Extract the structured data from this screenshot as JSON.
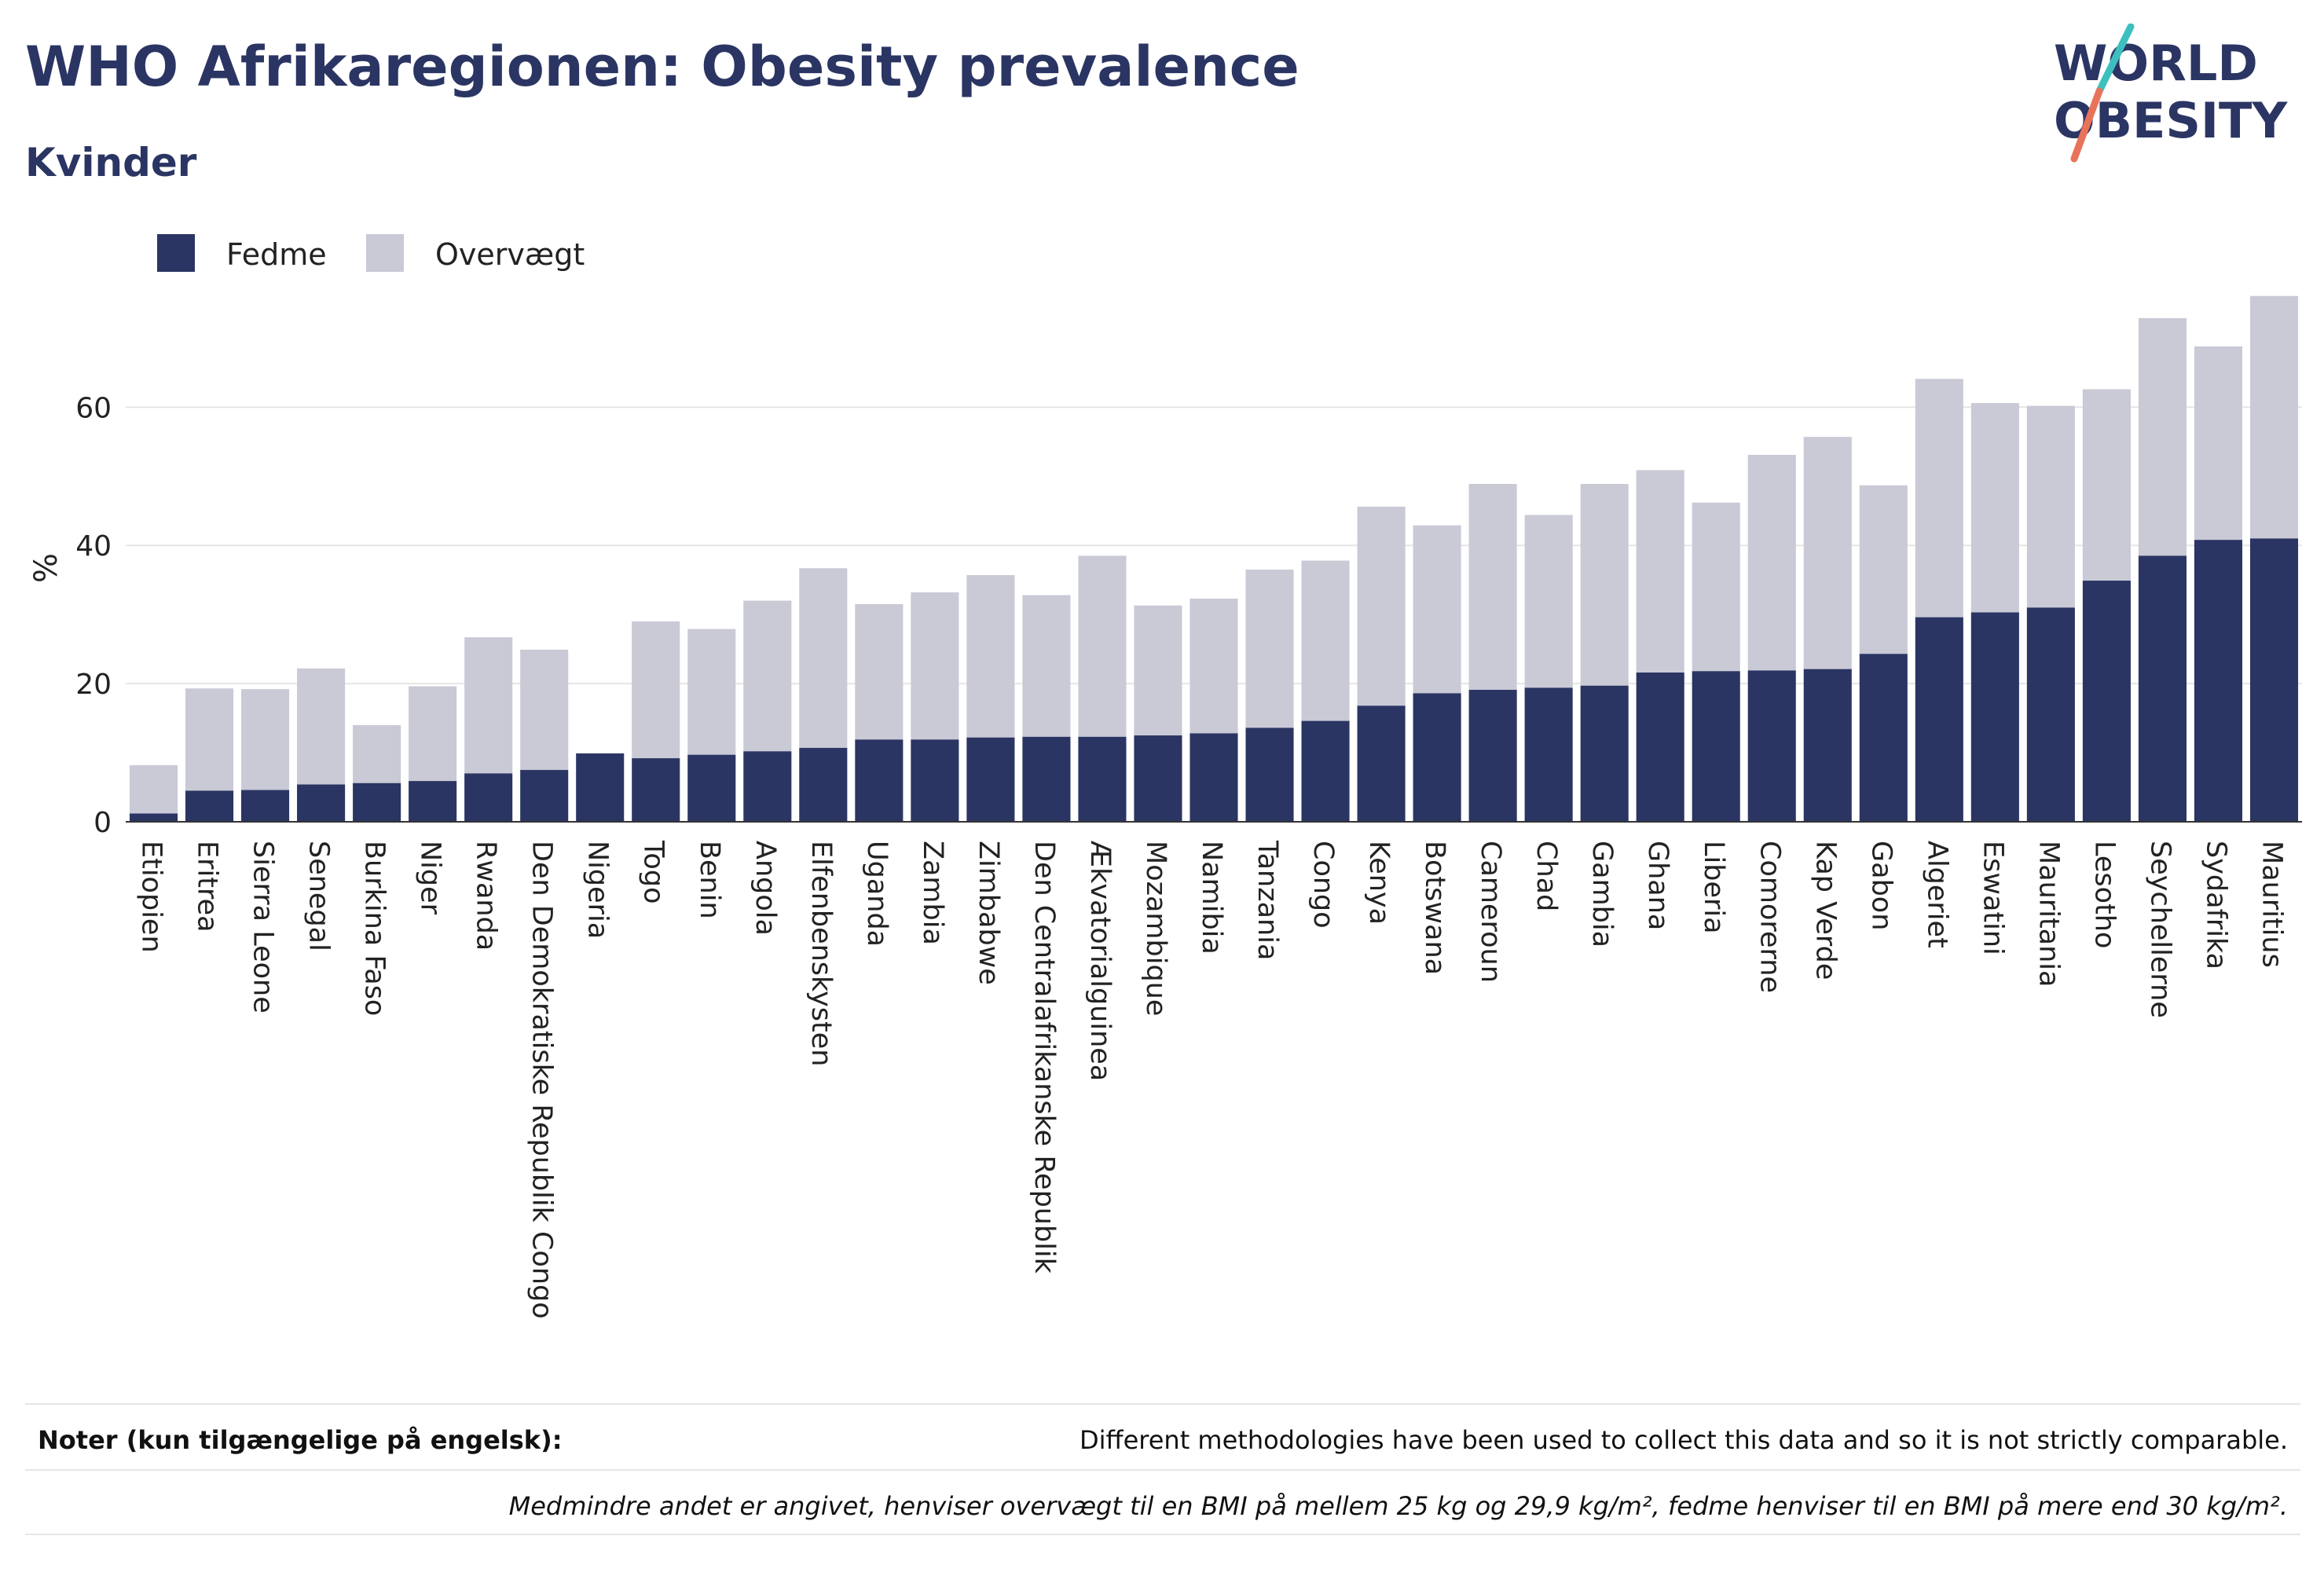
{
  "header": {
    "title": "WHO Afrikaregionen: Obesity prevalence",
    "subtitle": "Kvinder"
  },
  "logo": {
    "line1": "WORLD",
    "line2": "OBESITY",
    "accent_colors": [
      "#3dbfbf",
      "#e8735a"
    ]
  },
  "colors": {
    "fedme": "#2b3563",
    "overvaegt": "#c9cad6",
    "grid": "#e6e6e6",
    "text": "#2b3563"
  },
  "chart_data": {
    "type": "bar",
    "stacked": true,
    "ylabel": "%",
    "xlabel": "",
    "ylim": [
      0,
      78
    ],
    "yticks": [
      0,
      20,
      40,
      60
    ],
    "grid": true,
    "legend_position": "top-left",
    "categories": [
      "Etiopien",
      "Eritrea",
      "Sierra Leone",
      "Senegal",
      "Burkina Faso",
      "Niger",
      "Rwanda",
      "Den Demokratiske Republik Congo",
      "Nigeria",
      "Togo",
      "Benin",
      "Angola",
      "Elfenbenskysten",
      "Uganda",
      "Zambia",
      "Zimbabwe",
      "Den Centralafrikanske Republik",
      "Ækvatorialguinea",
      "Mozambique",
      "Namibia",
      "Tanzania",
      "Congo",
      "Kenya",
      "Botswana",
      "Cameroun",
      "Chad",
      "Gambia",
      "Ghana",
      "Liberia",
      "Comorerne",
      "Kap Verde",
      "Gabon",
      "Algeriet",
      "Eswatini",
      "Mauritania",
      "Lesotho",
      "Seychellerne",
      "Sydafrika",
      "Mauritius"
    ],
    "series": [
      {
        "name": "Fedme",
        "color": "#2b3563",
        "values": [
          1.2,
          4.5,
          4.6,
          5.4,
          5.6,
          5.9,
          7.0,
          7.5,
          9.9,
          9.2,
          9.7,
          10.2,
          10.7,
          11.9,
          11.9,
          12.2,
          12.3,
          12.3,
          12.5,
          12.8,
          13.6,
          14.6,
          16.8,
          18.6,
          19.1,
          19.4,
          19.7,
          21.6,
          21.8,
          21.9,
          22.1,
          24.3,
          29.6,
          30.3,
          31.0,
          34.9,
          38.5,
          40.8,
          41.0
        ]
      },
      {
        "name": "Overvægt",
        "color": "#c9cad6",
        "values": [
          7.0,
          14.8,
          14.6,
          16.8,
          8.4,
          13.7,
          19.7,
          17.4,
          0,
          19.8,
          18.2,
          21.8,
          26.0,
          19.6,
          21.3,
          23.5,
          20.5,
          26.2,
          18.8,
          19.5,
          22.9,
          23.2,
          28.8,
          24.3,
          29.8,
          25.0,
          29.2,
          29.3,
          24.4,
          31.2,
          33.6,
          24.4,
          34.5,
          30.3,
          29.2,
          27.7,
          34.4,
          28.0,
          35.1
        ]
      }
    ]
  },
  "notes": {
    "label": "Noter (kun tilgængelige på engelsk):",
    "text": "Different methodologies have been used to collect this data and so it is not strictly comparable.",
    "definition": "Medmindre andet er angivet, henviser overvægt til en BMI på mellem 25 kg og 29,9 kg/m², fedme henviser til en BMI på mere end 30 kg/m²."
  }
}
